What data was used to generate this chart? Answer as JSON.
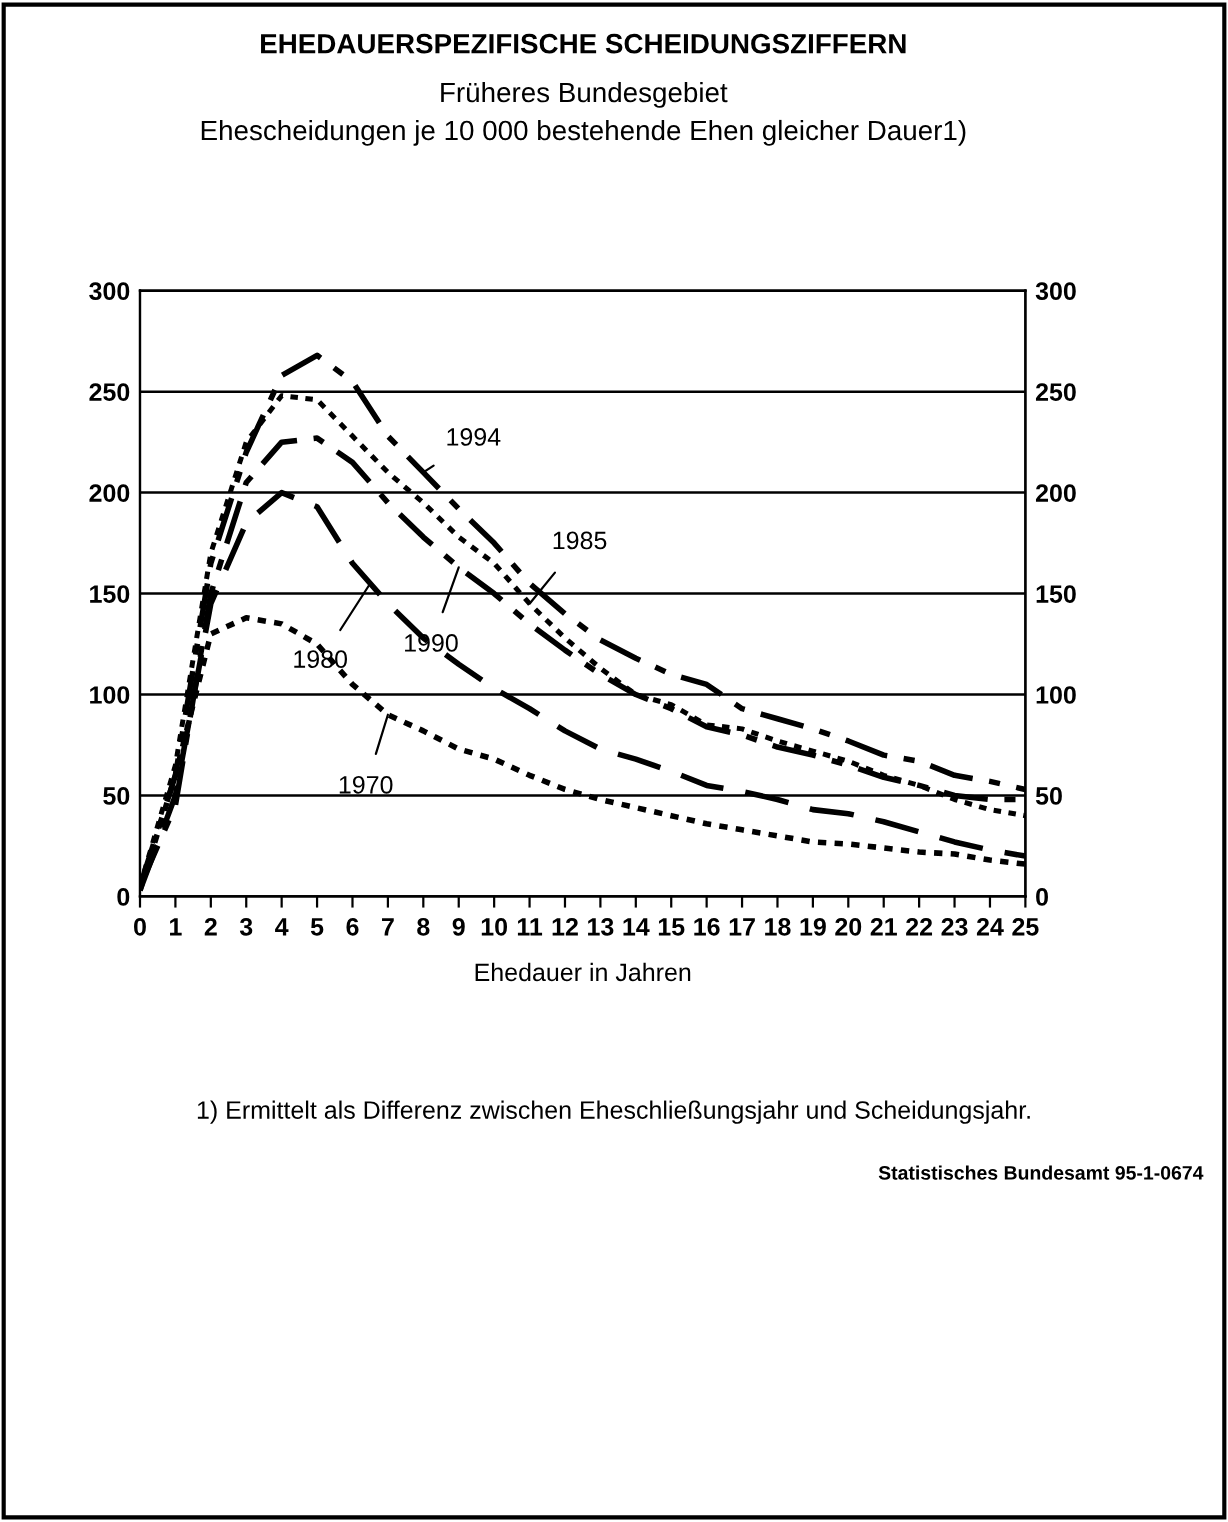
{
  "chart_data": {
    "type": "line",
    "title": "EHEDAUERSPEZIFISCHE SCHEIDUNGSZIFFERN",
    "subtitle": "Früheres Bundesgebiet\nEhescheidungen je 10 000 bestehende Ehen gleicher Dauer1)",
    "xlabel": "Ehedauer in Jahren",
    "x": [
      0,
      1,
      2,
      3,
      4,
      5,
      6,
      7,
      8,
      9,
      10,
      11,
      12,
      13,
      14,
      15,
      16,
      17,
      18,
      19,
      20,
      21,
      22,
      23,
      24,
      25
    ],
    "series": [
      {
        "color": "#000000",
        "line_style": "dashdot",
        "values": [
          5,
          60,
          165,
          220,
          258,
          268,
          255,
          228,
          210,
          192,
          175,
          155,
          140,
          127,
          118,
          110,
          105,
          93,
          88,
          83,
          77,
          70,
          67,
          60,
          57,
          53
        ]
      },
      {
        "color": "#000000",
        "line_style": "dotted",
        "values": [
          5,
          65,
          170,
          225,
          248,
          246,
          228,
          210,
          195,
          178,
          165,
          145,
          128,
          113,
          100,
          95,
          85,
          83,
          77,
          72,
          67,
          60,
          55,
          48,
          43,
          40
        ]
      },
      {
        "color": "#000000",
        "line_style": "dashdot",
        "values": [
          5,
          45,
          150,
          205,
          225,
          227,
          215,
          195,
          178,
          163,
          150,
          135,
          122,
          110,
          100,
          93,
          84,
          80,
          74,
          70,
          65,
          59,
          55,
          50,
          48,
          48
        ]
      },
      {
        "color": "#000000",
        "line_style": "dashed",
        "values": [
          3,
          50,
          145,
          185,
          200,
          193,
          165,
          145,
          128,
          115,
          103,
          93,
          82,
          73,
          68,
          62,
          55,
          52,
          48,
          43,
          41,
          37,
          32,
          27,
          23,
          20
        ]
      },
      {
        "color": "#000000",
        "line_style": "dotted",
        "values": [
          3,
          60,
          130,
          138,
          135,
          125,
          105,
          90,
          82,
          73,
          68,
          60,
          53,
          48,
          44,
          40,
          36,
          33,
          30,
          27,
          26,
          24,
          22,
          21,
          18,
          16
        ]
      }
    ],
    "xlim": [
      0,
      25
    ],
    "xticks": [
      0,
      1,
      2,
      3,
      4,
      5,
      6,
      7,
      8,
      9,
      10,
      11,
      12,
      13,
      14,
      15,
      16,
      17,
      18,
      19,
      20,
      21,
      22,
      23,
      24,
      25
    ],
    "ylim": [
      0,
      300
    ],
    "yticks": [
      0,
      50,
      100,
      150,
      200,
      250,
      300
    ],
    "y2lim": [
      0,
      300
    ],
    "y2ticks": [
      0,
      50,
      100,
      150,
      200,
      250,
      300
    ],
    "grid": "y",
    "legend": false,
    "annotations": [
      {
        "text": "1994",
        "x": 8,
        "y": 210
      },
      {
        "text": "1985",
        "x": 11,
        "y": 145
      },
      {
        "text": "1990",
        "x": 9,
        "y": 163
      },
      {
        "text": "1980",
        "x": 6.5,
        "y": 155
      },
      {
        "text": "1970",
        "x": 7,
        "y": 90
      },
      "1) Ermittelt als Differenz zwischen Eheschließungsjahr und Scheidungsjahr.",
      "Statistisches Bundesamt 95-1-0674"
    ]
  }
}
